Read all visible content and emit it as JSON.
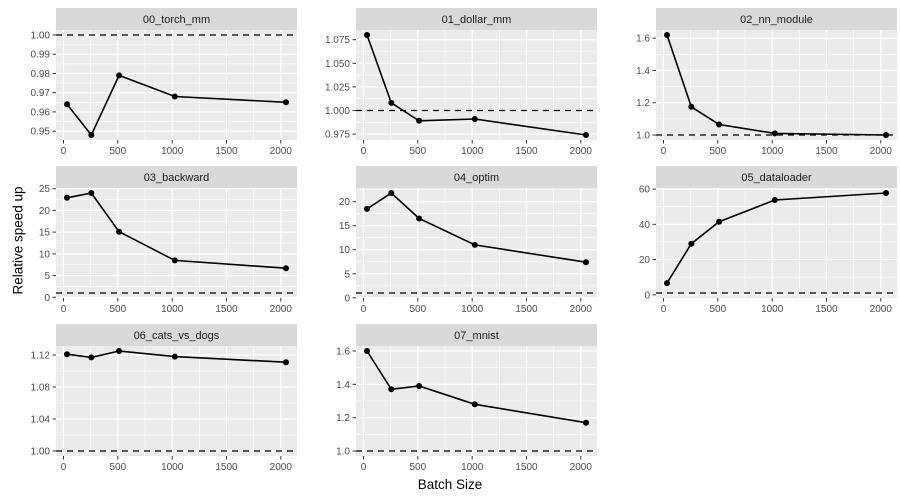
{
  "figure": {
    "xlabel": "Batch Size",
    "ylabel": "Relative speed up"
  },
  "style": {
    "strip_bg": "#D9D9D9",
    "panel_bg": "#EBEBEB",
    "grid_color": "#FFFFFF",
    "line_color": "#000000",
    "point_color": "#000000",
    "ref_line_color": "#000000",
    "tick_mark_color": "#333333",
    "tick_label_color": "#4D4D4D",
    "strip_text_color": "#1A1A1A",
    "axis_title_color": "#000000"
  },
  "chart_data": {
    "type": "line",
    "facet_layout": {
      "columns": 3,
      "rows": 3,
      "filled_cells": 8
    },
    "title": "",
    "xlabel": "Batch Size",
    "ylabel": "Relative speed up",
    "x": [
      32,
      256,
      512,
      1024,
      2048
    ],
    "x_ticks": [
      0,
      500,
      1000,
      1500,
      2000
    ],
    "x_tick_labels": [
      "0",
      "500",
      "1000",
      "1500",
      "2000"
    ],
    "xlim": [
      -68.8,
      2148.8
    ],
    "grid": true,
    "legend": "none",
    "reference_line": {
      "y": 1.0,
      "style": "dashed"
    },
    "facets": [
      {
        "title": "00_torch_mm",
        "values": [
          0.964,
          0.948,
          0.979,
          0.968,
          0.965
        ],
        "y_ticks": [
          0.95,
          0.96,
          0.97,
          0.98,
          0.99,
          1.0
        ],
        "y_tick_labels": [
          "0.95",
          "0.96",
          "0.97",
          "0.98",
          "0.99",
          "1.00"
        ],
        "ylim": [
          0.9454,
          1.0026
        ]
      },
      {
        "title": "01_dollar_mm",
        "values": [
          1.08,
          1.008,
          0.989,
          0.991,
          0.974
        ],
        "y_ticks": [
          0.975,
          1.0,
          1.025,
          1.05,
          1.075
        ],
        "y_tick_labels": [
          "0.975",
          "1.000",
          "1.025",
          "1.050",
          "1.075"
        ],
        "ylim": [
          0.9687,
          1.0853
        ]
      },
      {
        "title": "02_nn_module",
        "values": [
          1.62,
          1.175,
          1.065,
          1.01,
          1.0
        ],
        "y_ticks": [
          1.0,
          1.2,
          1.4,
          1.6
        ],
        "y_tick_labels": [
          "1.0",
          "1.2",
          "1.4",
          "1.6"
        ],
        "ylim": [
          0.969,
          1.651
        ]
      },
      {
        "title": "03_backward",
        "values": [
          22.9,
          24.0,
          15.1,
          8.5,
          6.7
        ],
        "y_ticks": [
          0,
          5,
          10,
          15,
          20,
          25
        ],
        "y_tick_labels": [
          "0",
          "5",
          "10",
          "15",
          "20",
          "25"
        ],
        "ylim": [
          -0.15,
          25.15
        ]
      },
      {
        "title": "04_optim",
        "values": [
          18.5,
          21.8,
          16.5,
          11.0,
          7.4
        ],
        "y_ticks": [
          0,
          5,
          10,
          15,
          20
        ],
        "y_tick_labels": [
          "0",
          "5",
          "10",
          "15",
          "20"
        ],
        "ylim": [
          -0.04,
          22.84
        ]
      },
      {
        "title": "05_dataloader",
        "values": [
          6.6,
          29.0,
          41.5,
          53.8,
          57.8
        ],
        "y_ticks": [
          0,
          20,
          40,
          60
        ],
        "y_tick_labels": [
          "0",
          "20",
          "40",
          "60"
        ],
        "ylim": [
          -1.84,
          60.64
        ]
      },
      {
        "title": "06_cats_vs_dogs",
        "values": [
          1.121,
          1.117,
          1.125,
          1.118,
          1.111
        ],
        "y_ticks": [
          1.0,
          1.04,
          1.08,
          1.12
        ],
        "y_tick_labels": [
          "1.00",
          "1.04",
          "1.08",
          "1.12"
        ],
        "ylim": [
          0.99375,
          1.13125
        ]
      },
      {
        "title": "07_mnist",
        "values": [
          1.6,
          1.37,
          1.39,
          1.28,
          1.17
        ],
        "y_ticks": [
          1.0,
          1.2,
          1.4,
          1.6
        ],
        "y_tick_labels": [
          "1.0",
          "1.2",
          "1.4",
          "1.6"
        ],
        "ylim": [
          0.97,
          1.63
        ]
      }
    ]
  }
}
